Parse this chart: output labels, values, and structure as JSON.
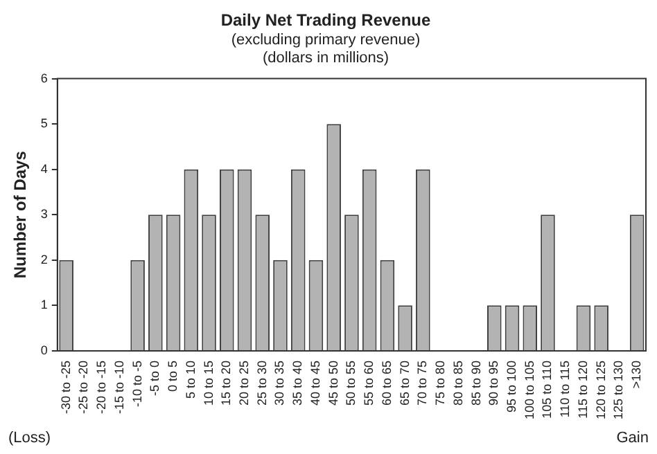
{
  "chart_data": {
    "type": "bar",
    "title": "Daily Net Trading Revenue",
    "subtitle": "(excluding primary revenue)\n(dollars in millions)",
    "ylabel": "Number of Days",
    "categories": [
      "-30 to -25",
      "-25 to -20",
      "-20 to -15",
      "-15 to -10",
      "-10 to -5",
      "-5 to 0",
      "0 to 5",
      "5 to 10",
      "10 to 15",
      "15 to 20",
      "20 to 25",
      "25 to 30",
      "30 to 35",
      "35 to 40",
      "40 to 45",
      "45 to 50",
      "50 to 55",
      "55 to 60",
      "60 to 65",
      "65 to 70",
      "70 to 75",
      "75 to 80",
      "80 to 85",
      "85 to 90",
      "90 to 95",
      "95 to 100",
      "100 to 105",
      "105 to 110",
      "110 to 115",
      "115 to 120",
      "120 to 125",
      "125 to 130",
      ">130"
    ],
    "values": [
      2,
      0,
      0,
      0,
      2,
      3,
      3,
      4,
      3,
      4,
      4,
      3,
      2,
      4,
      2,
      5,
      3,
      4,
      2,
      1,
      4,
      0,
      0,
      0,
      1,
      1,
      1,
      3,
      0,
      1,
      1,
      0,
      3
    ],
    "color": "#b3b3b3",
    "ylim": [
      0,
      6
    ],
    "yticks": [
      0,
      1,
      2,
      3,
      4,
      5,
      6
    ],
    "grid": false,
    "legend": false,
    "annotations": [
      "(Loss)",
      "Gain"
    ]
  }
}
